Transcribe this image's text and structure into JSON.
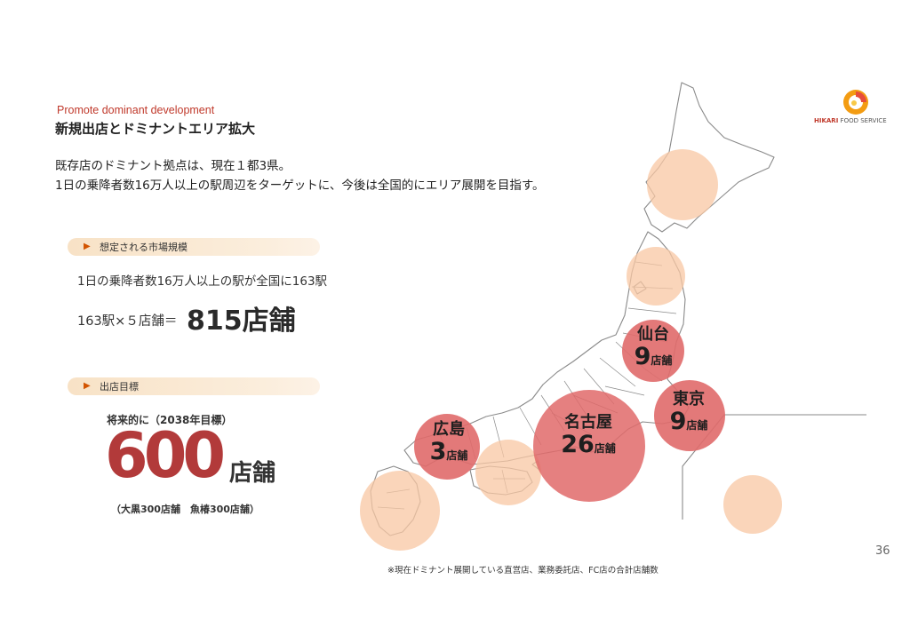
{
  "header": {
    "subtitle": "Promote dominant development",
    "title": "新規出店とドミナントエリア拡大"
  },
  "body": {
    "line1": "既存店のドミナント拠点は、現在１都3県。",
    "line2": "1日の乗降者数16万人以上の駅周辺をターゲットに、今後は全国的にエリア展開を目指す。"
  },
  "market": {
    "label": "想定される市場規模",
    "text": "1日の乗降者数16万人以上の駅が全国に163駅",
    "calc_prefix": "163駅×５店舗＝",
    "calc_result": "815店舗"
  },
  "goal": {
    "label": "出店目標",
    "sub_label": "将来的に（2038年目標）",
    "number": "600",
    "unit": "店舗",
    "note": "（大黒300店舗　魚椿300店舗）"
  },
  "logo": {
    "brand_bold": "HIKARI",
    "brand_rest": "FOOD SERVICE"
  },
  "map": {
    "cities": [
      {
        "name": "仙台",
        "count": "9",
        "unit": "店舗"
      },
      {
        "name": "東京",
        "count": "9",
        "unit": "店舗"
      },
      {
        "name": "名古屋",
        "count": "26",
        "unit": "店舗"
      },
      {
        "name": "広島",
        "count": "3",
        "unit": "店舗"
      }
    ],
    "colors": {
      "active_circle": "#e06a6a",
      "future_circle": "#f8c7a3",
      "map_line": "#8a8a8a"
    }
  },
  "footer": {
    "note": "※現在ドミナント展開している直営店、業務委託店、FC店の合計店舗数",
    "page": "36"
  }
}
